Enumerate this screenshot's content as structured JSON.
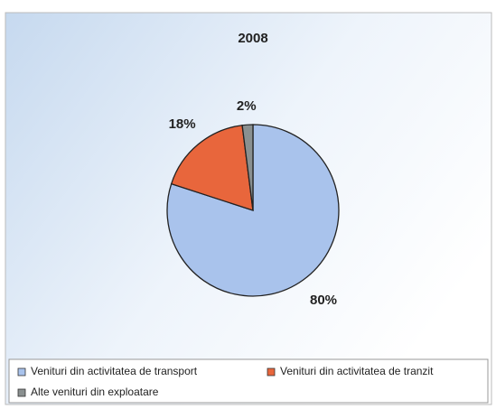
{
  "chart_data": {
    "type": "pie",
    "title": "2008",
    "categories": [
      "Venituri din activitatea de transport",
      "Venituri din activitatea de tranzit",
      "Alte venituri din exploatare"
    ],
    "values": [
      80,
      18,
      2
    ],
    "value_labels": [
      "80%",
      "18%",
      "2%"
    ],
    "colors": [
      "#a9c3ec",
      "#e8663c",
      "#8a9090"
    ],
    "legend": "bottom"
  }
}
